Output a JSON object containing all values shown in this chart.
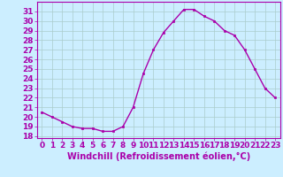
{
  "x": [
    0,
    1,
    2,
    3,
    4,
    5,
    6,
    7,
    8,
    9,
    10,
    11,
    12,
    13,
    14,
    15,
    16,
    17,
    18,
    19,
    20,
    21,
    22,
    23
  ],
  "y": [
    20.5,
    20.0,
    19.5,
    19.0,
    18.8,
    18.8,
    18.5,
    18.5,
    19.0,
    21.0,
    24.5,
    27.0,
    28.8,
    30.0,
    31.2,
    31.2,
    30.5,
    30.0,
    29.0,
    28.5,
    27.0,
    25.0,
    23.0,
    22.0
  ],
  "line_color": "#aa00aa",
  "marker": "s",
  "marker_size": 2,
  "xlabel": "Windchill (Refroidissement éolien,°C)",
  "xlabel_fontsize": 7,
  "bg_color": "#cceeff",
  "grid_color": "#aacccc",
  "ylim": [
    17.8,
    32.0
  ],
  "xlim": [
    -0.5,
    23.5
  ],
  "yticks": [
    18,
    19,
    20,
    21,
    22,
    23,
    24,
    25,
    26,
    27,
    28,
    29,
    30,
    31
  ],
  "xticks": [
    0,
    1,
    2,
    3,
    4,
    5,
    6,
    7,
    8,
    9,
    10,
    11,
    12,
    13,
    14,
    15,
    16,
    17,
    18,
    19,
    20,
    21,
    22,
    23
  ],
  "tick_fontsize": 6.5,
  "line_width": 1.0,
  "spine_color": "#aa00aa",
  "tick_color": "#aa00aa",
  "label_color": "#aa00aa"
}
